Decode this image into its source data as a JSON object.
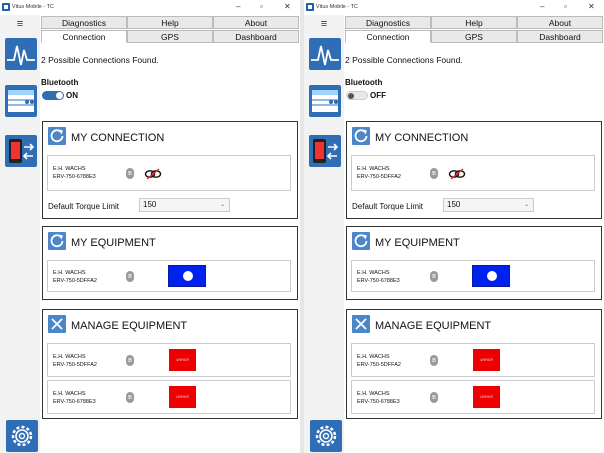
{
  "colors": {
    "accent": "#2f6db5",
    "section_icon": "#4a86c8",
    "toggle_blue": "#0022ee",
    "unpair_red": "#ee0000"
  },
  "screens": [
    {
      "window": {
        "title": "Vitus Mobile - TC",
        "minimize": "–",
        "maximize": "▫",
        "close": "✕"
      },
      "tabs": {
        "diagnostics": "Diagnostics",
        "help": "Help",
        "about": "About",
        "connection": "Connection",
        "gps": "GPS",
        "dashboard": "Dashboard"
      },
      "status": "2 Possible Connections Found.",
      "bluetooth": {
        "label": "Bluetooth",
        "state": "ON"
      },
      "my_connection": {
        "title": "MY CONNECTION",
        "device": {
          "name": "E.H. WACHS",
          "serial": "ERV-750-6788E3"
        },
        "torque_label": "Default Torque Limit",
        "torque_value": "150"
      },
      "my_equipment": {
        "title": "MY EQUIPMENT",
        "device": {
          "name": "E.H. WACHS",
          "serial": "ERV-750-5DFFA2"
        }
      },
      "manage_equipment": {
        "title": "MANAGE EQUIPMENT",
        "devices": [
          {
            "name": "E.H. WACHS",
            "serial": "ERV-750-5DFFA2",
            "action": "UNPAIR"
          },
          {
            "name": "E.H. WACHS",
            "serial": "ERV-750-6788E3",
            "action": "UNPAIR"
          }
        ]
      }
    },
    {
      "window": {
        "title": "Vitus Mobile - TC",
        "minimize": "–",
        "maximize": "▫",
        "close": "✕"
      },
      "tabs": {
        "diagnostics": "Diagnostics",
        "help": "Help",
        "about": "About",
        "connection": "Connection",
        "gps": "GPS",
        "dashboard": "Dashboard"
      },
      "status": "2 Possible Connections Found.",
      "bluetooth": {
        "label": "Bluetooth",
        "state": "OFF"
      },
      "my_connection": {
        "title": "MY CONNECTION",
        "device": {
          "name": "E.H. WACHS",
          "serial": "ERV-750-5DFFA2"
        },
        "torque_label": "Default Torque Limit",
        "torque_value": "150"
      },
      "my_equipment": {
        "title": "MY EQUIPMENT",
        "device": {
          "name": "E.H. WACHS",
          "serial": "ERV-750-6788E3"
        }
      },
      "manage_equipment": {
        "title": "MANAGE EQUIPMENT",
        "devices": [
          {
            "name": "E.H. WACHS",
            "serial": "ERV-750-5DFFA2",
            "action": "UNPAIR"
          },
          {
            "name": "E.H. WACHS",
            "serial": "ERV-750-6788E3",
            "action": "UNPAIR"
          }
        ]
      }
    }
  ]
}
